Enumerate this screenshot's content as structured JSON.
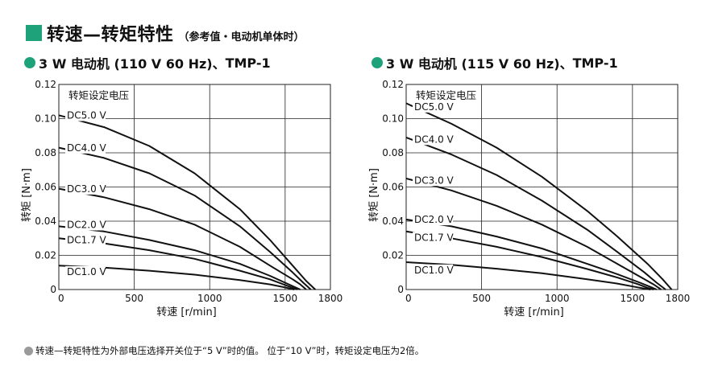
{
  "header": {
    "title": "转速—转矩特性",
    "subtitle": "（参考值・电动机单体时）",
    "accent_color": "#1ea27a"
  },
  "chart_data": [
    {
      "type": "line",
      "title": "3 W 电动机 (110 V 60 Hz)、",
      "model": "TMP-1",
      "xlabel": "转速 [r/min]",
      "ylabel": "转矩 [N·m]",
      "xlim": [
        0,
        1800
      ],
      "ylim": [
        0,
        0.12
      ],
      "xticks": [
        "0",
        "500",
        "1000",
        "1500",
        "1800"
      ],
      "yticks": [
        "0",
        "0.02",
        "0.04",
        "0.06",
        "0.08",
        "0.10",
        "0.12"
      ],
      "grid": true,
      "legend_title": "转矩设定电压",
      "series": [
        {
          "name": "DC5.0 V",
          "x": [
            0,
            300,
            600,
            900,
            1200,
            1400,
            1550,
            1640,
            1700
          ],
          "y": [
            0.102,
            0.095,
            0.084,
            0.068,
            0.047,
            0.029,
            0.014,
            0.005,
            0
          ]
        },
        {
          "name": "DC4.0 V",
          "x": [
            0,
            300,
            600,
            900,
            1200,
            1400,
            1550,
            1620,
            1670
          ],
          "y": [
            0.083,
            0.077,
            0.068,
            0.055,
            0.037,
            0.022,
            0.01,
            0.004,
            0
          ]
        },
        {
          "name": "DC3.0 V",
          "x": [
            0,
            300,
            600,
            900,
            1200,
            1400,
            1550,
            1600,
            1640
          ],
          "y": [
            0.059,
            0.054,
            0.047,
            0.038,
            0.025,
            0.014,
            0.006,
            0.003,
            0
          ]
        },
        {
          "name": "DC2.0 V",
          "x": [
            0,
            300,
            600,
            900,
            1200,
            1400,
            1550,
            1600
          ],
          "y": [
            0.037,
            0.034,
            0.029,
            0.023,
            0.015,
            0.008,
            0.002,
            0
          ]
        },
        {
          "name": "DC1.7 V",
          "x": [
            0,
            300,
            600,
            900,
            1200,
            1400,
            1520,
            1580
          ],
          "y": [
            0.03,
            0.027,
            0.023,
            0.018,
            0.011,
            0.006,
            0.002,
            0
          ]
        },
        {
          "name": "DC1.0 V",
          "x": [
            0,
            300,
            600,
            900,
            1200,
            1400,
            1500,
            1560
          ],
          "y": [
            0.014,
            0.0128,
            0.011,
            0.0087,
            0.0055,
            0.003,
            0.0012,
            0
          ]
        }
      ],
      "label_y": [
        0.1,
        0.081,
        0.057,
        0.036,
        0.027,
        0.0085
      ]
    },
    {
      "type": "line",
      "title": "3 W 电动机 (115 V 60 Hz)、",
      "model": "TMP-1",
      "xlabel": "转速 [r/min]",
      "ylabel": "转矩 [N·m]",
      "xlim": [
        0,
        1800
      ],
      "ylim": [
        0,
        0.12
      ],
      "xticks": [
        "0",
        "500",
        "1000",
        "1500",
        "1800"
      ],
      "yticks": [
        "0",
        "0.02",
        "0.04",
        "0.06",
        "0.08",
        "0.10",
        "0.12"
      ],
      "grid": true,
      "legend_title": "转矩设定电压",
      "series": [
        {
          "name": "DC5.0 V",
          "x": [
            0,
            300,
            600,
            900,
            1200,
            1400,
            1600,
            1700,
            1760
          ],
          "y": [
            0.109,
            0.097,
            0.083,
            0.066,
            0.046,
            0.031,
            0.015,
            0.006,
            0
          ]
        },
        {
          "name": "DC4.0 V",
          "x": [
            0,
            300,
            600,
            900,
            1200,
            1400,
            1580,
            1660,
            1720
          ],
          "y": [
            0.089,
            0.079,
            0.067,
            0.052,
            0.035,
            0.022,
            0.01,
            0.004,
            0
          ]
        },
        {
          "name": "DC3.0 V",
          "x": [
            0,
            300,
            600,
            900,
            1200,
            1400,
            1560,
            1640,
            1690
          ],
          "y": [
            0.065,
            0.058,
            0.049,
            0.038,
            0.025,
            0.015,
            0.007,
            0.003,
            0
          ]
        },
        {
          "name": "DC2.0 V",
          "x": [
            0,
            300,
            600,
            900,
            1200,
            1400,
            1550,
            1620,
            1660
          ],
          "y": [
            0.041,
            0.037,
            0.031,
            0.024,
            0.015,
            0.009,
            0.004,
            0.0015,
            0
          ]
        },
        {
          "name": "DC1.7 V",
          "x": [
            0,
            300,
            600,
            900,
            1200,
            1400,
            1540,
            1600,
            1640
          ],
          "y": [
            0.034,
            0.03,
            0.025,
            0.019,
            0.012,
            0.007,
            0.003,
            0.001,
            0
          ]
        },
        {
          "name": "DC1.0 V",
          "x": [
            0,
            300,
            600,
            900,
            1200,
            1400,
            1520,
            1580,
            1620
          ],
          "y": [
            0.016,
            0.0145,
            0.0122,
            0.0095,
            0.006,
            0.0035,
            0.0015,
            0.0005,
            0
          ]
        }
      ],
      "label_y": [
        0.105,
        0.086,
        0.062,
        0.039,
        0.0285,
        0.0095
      ]
    }
  ],
  "footnote": "转速—转矩特性为外部电压选择开关位于“5 V”时的值。 位于“10 V”时，转矩设定电压为2倍。"
}
